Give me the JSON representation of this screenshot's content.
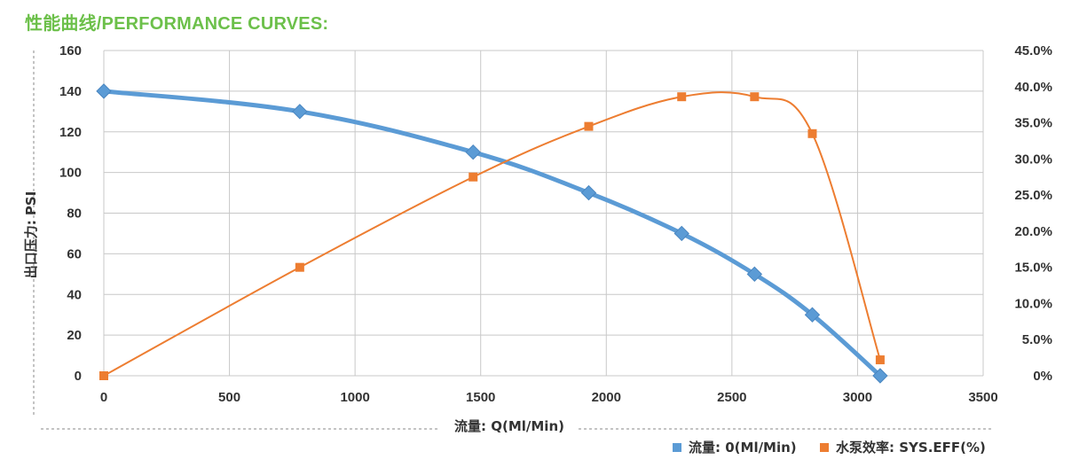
{
  "page": {
    "title": "性能曲线/PERFORMANCE CURVES:"
  },
  "chart_data": {
    "type": "line",
    "x_label": "流量: Q(Ml/Min)",
    "y_left_label": "出口压力: PSI",
    "x_ticks": [
      "0",
      "500",
      "1000",
      "1500",
      "2000",
      "2500",
      "3000",
      "3500"
    ],
    "y_left_ticks": [
      "0",
      "20",
      "40",
      "60",
      "80",
      "100",
      "120",
      "140",
      "160"
    ],
    "y_right_ticks": [
      "0%",
      "5.0%",
      "10.0%",
      "15.0%",
      "20.0%",
      "25.0%",
      "30.0%",
      "35.0%",
      "40.0%",
      "45.0%"
    ],
    "xlim": [
      0,
      3500
    ],
    "ylim_left": [
      0,
      160
    ],
    "ylim_right": [
      0,
      45
    ],
    "grid": true,
    "legend_position": "bottom-right",
    "series": [
      {
        "name": "流量: 0(Ml/Min)",
        "axis": "left",
        "color": "#5b9bd5",
        "marker": "diamond",
        "x": [
          0,
          780,
          1470,
          1930,
          2300,
          2590,
          2820,
          3090
        ],
        "y": [
          140,
          130,
          110,
          90,
          70,
          50,
          30,
          0
        ]
      },
      {
        "name": "水泵效率: SYS.EFF(%)",
        "axis": "right",
        "color": "#ed7d31",
        "marker": "square",
        "x": [
          0,
          780,
          1470,
          1930,
          2300,
          2590,
          2820,
          3090
        ],
        "y": [
          0,
          15,
          27.5,
          34.5,
          38.6,
          38.6,
          33.5,
          2.2
        ]
      }
    ]
  }
}
